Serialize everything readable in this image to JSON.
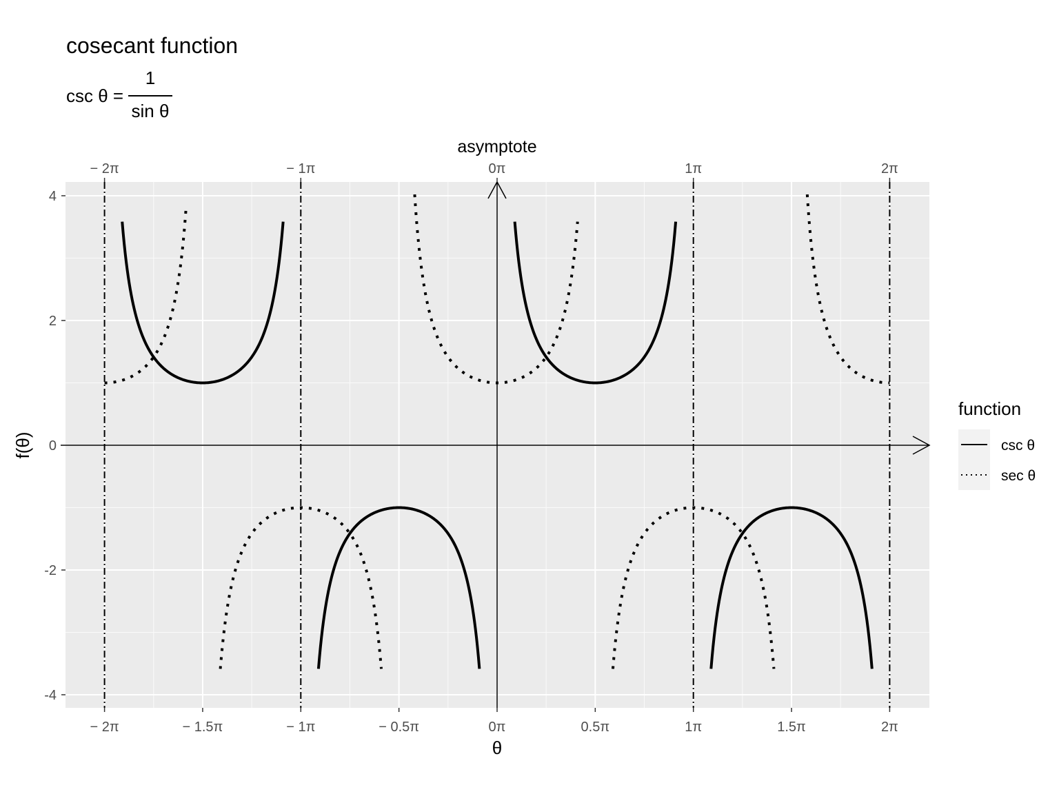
{
  "title": "cosecant function",
  "formula": {
    "lhs": "csc θ =",
    "numerator": "1",
    "denominator": "sin θ"
  },
  "chart_data": {
    "type": "line",
    "xlabel": "θ",
    "ylabel": "f(θ)",
    "secondary_axis_label": "asymptote",
    "xlim": [
      -2.2,
      2.2
    ],
    "ylim": [
      -4.2,
      4.2
    ],
    "x_unit": "π",
    "x_major_ticks": [
      -2,
      -1.5,
      -1,
      -0.5,
      0,
      0.5,
      1,
      1.5,
      2
    ],
    "x_tick_labels": [
      "− 2π",
      "− 1.5π",
      "− 1π",
      "− 0.5π",
      "0π",
      "0.5π",
      "1π",
      "1.5π",
      "2π"
    ],
    "top_ticks": [
      -2,
      -1,
      0,
      1,
      2
    ],
    "top_tick_labels": [
      "− 2π",
      "− 1π",
      "0π",
      "1π",
      "2π"
    ],
    "y_major_ticks": [
      -4,
      -2,
      0,
      2,
      4
    ],
    "y_tick_labels": [
      "-4",
      "-2",
      "0",
      "2",
      "4"
    ],
    "grid": true,
    "asymptotes_x": [
      -2,
      -1,
      1,
      2
    ],
    "legend_title": "function",
    "legend_position": "right",
    "series": [
      {
        "name": "csc θ",
        "function": "csc",
        "linestyle": "solid",
        "color": "#000000",
        "segments": [
          [
            -1.91,
            -1.09
          ],
          [
            -0.91,
            -0.09
          ],
          [
            0.09,
            0.91
          ],
          [
            1.09,
            1.91
          ]
        ]
      },
      {
        "name": "sec θ",
        "function": "sec",
        "linestyle": "dotted",
        "color": "#000000",
        "segments": [
          [
            -2.0,
            -1.585
          ],
          [
            -1.41,
            -0.59
          ],
          [
            -0.42,
            0.41
          ],
          [
            0.59,
            1.41
          ],
          [
            1.58,
            2.0
          ]
        ]
      }
    ]
  }
}
